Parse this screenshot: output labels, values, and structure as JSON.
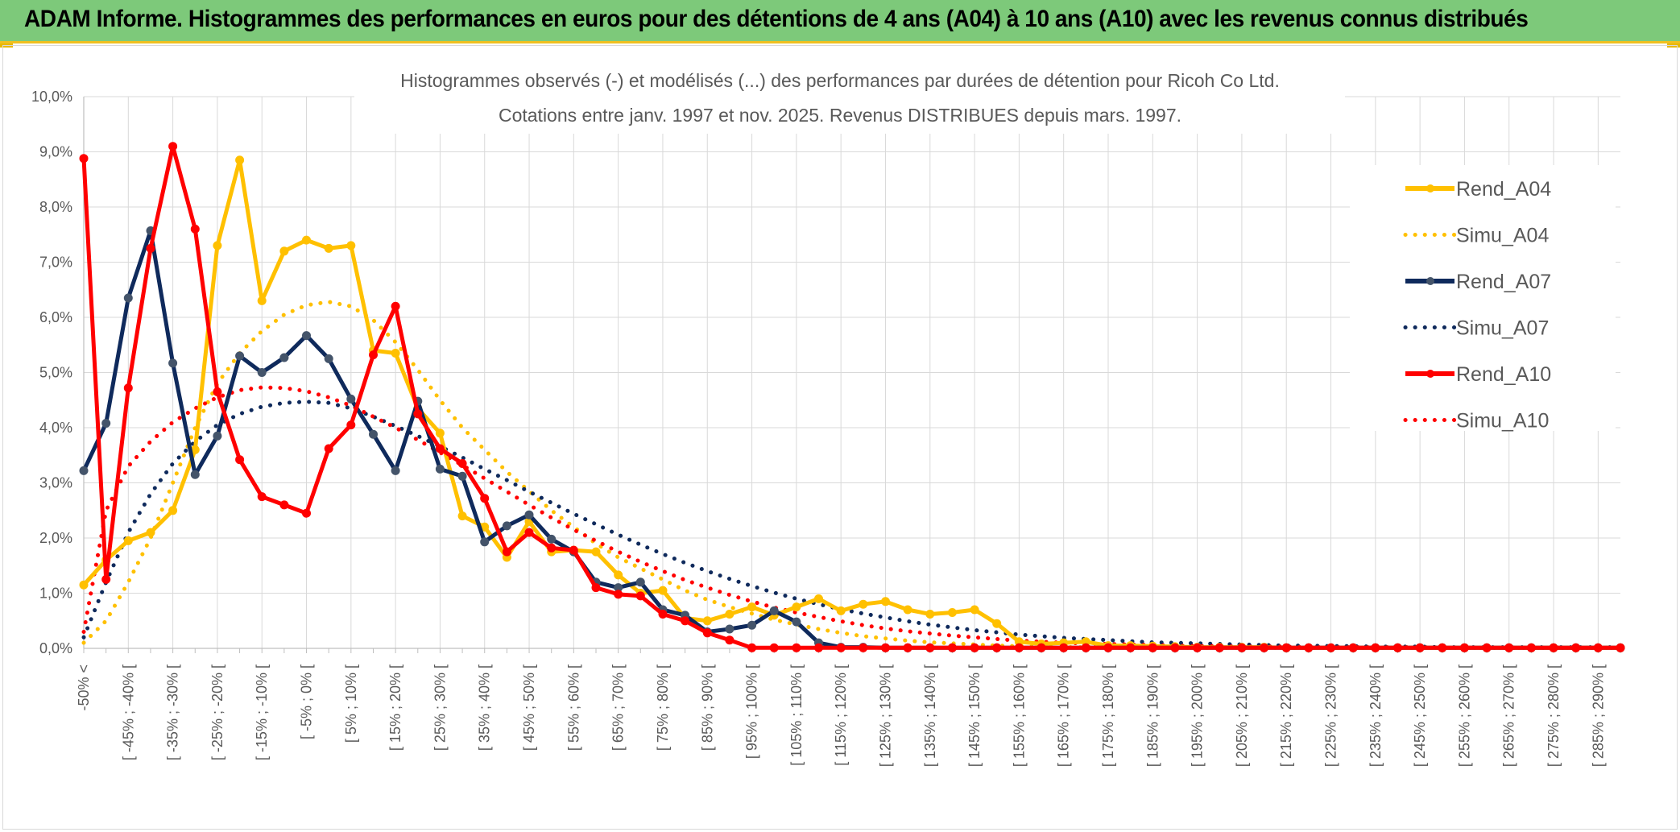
{
  "banner": {
    "title": "ADAM Informe. Histogrammes des performances en euros pour des détentions de 4 ans (A04) à 10 ans (A10) avec les revenus connus distribués"
  },
  "chart_data": {
    "type": "line",
    "title_line1": "Histogrammes observés (-) et modélisés (...) des performances par durées de détention pour Ricoh Co Ltd.",
    "title_line2": "Cotations entre janv. 1997 et nov. 2025. Revenus DISTRIBUES depuis mars. 1997.",
    "ylim": [
      0,
      10
    ],
    "y_ticks": [
      "0,0%",
      "1,0%",
      "2,0%",
      "3,0%",
      "4,0%",
      "5,0%",
      "6,0%",
      "7,0%",
      "8,0%",
      "9,0%",
      "10,0%"
    ],
    "x_count": 70,
    "x_tick_labels": [
      "-50% <",
      "[ -45% ; -40% [",
      "[ -35% ; -30% [",
      "[ -25% ; -20% [",
      "[ -15% ; -10% [",
      "[ -5% ; 0% [",
      "[ 5% ; 10% [",
      "[ 15% ; 20% [",
      "[ 25% ; 30% [",
      "[ 35% ; 40% [",
      "[ 45% ; 50% [",
      "[ 55% ; 60% [",
      "[ 65% ; 70% [",
      "[ 75% ; 80% [",
      "[ 85% ; 90% [",
      "[ 95% ; 100% [",
      "[ 105% ; 110% [",
      "[ 115% ; 120% [",
      "[ 125% ; 130% [",
      "[ 135% ; 140% [",
      "[ 145% ; 150% [",
      "[ 155% ; 160% [",
      "[ 165% ; 170% [",
      "[ 175% ; 180% [",
      "[ 185% ; 190% [",
      "[ 195% ; 200% [",
      "[ 205% ; 210% [",
      "[ 215% ; 220% [",
      "[ 225% ; 230% [",
      "[ 235% ; 240% [",
      "[ 245% ; 250% [",
      "[ 255% ; 260% [",
      "[ 265% ; 270% [",
      "[ 275% ; 280% [",
      "[ 285% ; 290% ["
    ],
    "legend_position": "right",
    "series": [
      {
        "name": "Rend_A04",
        "color": "#ffc000",
        "style": "solid",
        "markers": true,
        "values": [
          1.15,
          1.6,
          1.95,
          2.1,
          2.5,
          3.6,
          7.3,
          8.85,
          6.3,
          7.2,
          7.4,
          7.25,
          7.3,
          5.4,
          5.35,
          4.35,
          3.9,
          2.4,
          2.2,
          1.65,
          2.3,
          1.75,
          1.78,
          1.75,
          1.33,
          1.0,
          1.05,
          0.55,
          0.5,
          0.62,
          0.75,
          0.6,
          0.75,
          0.9,
          0.68,
          0.8,
          0.85,
          0.7,
          0.62,
          0.65,
          0.7,
          0.45,
          0.12,
          0.08,
          0.1,
          0.12,
          0.05,
          0.05,
          0.04,
          0.03,
          0.02,
          0.02,
          0.02,
          0.02,
          0.01,
          0.01,
          0.01,
          0.01,
          0.01,
          0.01,
          0.01,
          0.01,
          0.01,
          0.01,
          0.01,
          0.01,
          0.01,
          0.01,
          0.01,
          0.01
        ]
      },
      {
        "name": "Simu_A04",
        "color": "#ffc000",
        "style": "dotted",
        "markers": false,
        "values": [
          0.1,
          0.5,
          1.2,
          2.0,
          3.0,
          4.0,
          4.8,
          5.35,
          5.75,
          6.05,
          6.22,
          6.28,
          6.2,
          5.95,
          5.55,
          5.05,
          4.5,
          4.0,
          3.6,
          3.2,
          2.85,
          2.5,
          2.2,
          1.9,
          1.65,
          1.45,
          1.25,
          1.05,
          0.88,
          0.75,
          0.63,
          0.52,
          0.43,
          0.35,
          0.28,
          0.22,
          0.18,
          0.14,
          0.11,
          0.09,
          0.07,
          0.05,
          0.04,
          0.03,
          0.02,
          0.02,
          0.01,
          0.01,
          0.01,
          0.01,
          0.01,
          0.01,
          0.01,
          0.01,
          0.01,
          0.01,
          0.01,
          0.01,
          0.01,
          0.01,
          0.01,
          0.01,
          0.01,
          0.01,
          0.01,
          0.01,
          0.01,
          0.01,
          0.01,
          0.01
        ]
      },
      {
        "name": "Rend_A07",
        "color": "#0f2a5c",
        "style": "solid",
        "markers": true,
        "values": [
          3.22,
          4.08,
          6.35,
          7.57,
          5.17,
          3.15,
          3.85,
          5.3,
          5.0,
          5.27,
          5.67,
          5.25,
          4.52,
          3.88,
          3.22,
          4.48,
          3.25,
          3.12,
          1.93,
          2.22,
          2.42,
          1.98,
          1.75,
          1.2,
          1.1,
          1.2,
          0.7,
          0.6,
          0.3,
          0.35,
          0.42,
          0.68,
          0.48,
          0.1,
          0.02,
          0.02,
          0.01,
          0.01,
          0.01,
          0.01,
          0.01,
          0.01,
          0.01,
          0.01,
          0.01,
          0.01,
          0.01,
          0.01,
          0.01,
          0.01,
          0.01,
          0.01,
          0.01,
          0.01,
          0.01,
          0.01,
          0.01,
          0.01,
          0.01,
          0.01,
          0.01,
          0.01,
          0.01,
          0.01,
          0.01,
          0.01,
          0.01,
          0.01,
          0.01,
          0.01
        ]
      },
      {
        "name": "Simu_A07",
        "color": "#0f2a5c",
        "style": "dotted",
        "markers": false,
        "values": [
          0.2,
          1.2,
          2.1,
          2.8,
          3.35,
          3.75,
          4.05,
          4.25,
          4.38,
          4.45,
          4.47,
          4.45,
          4.35,
          4.2,
          4.03,
          3.85,
          3.66,
          3.46,
          3.25,
          3.05,
          2.84,
          2.64,
          2.44,
          2.25,
          2.06,
          1.88,
          1.71,
          1.55,
          1.4,
          1.26,
          1.13,
          1.01,
          0.9,
          0.8,
          0.71,
          0.63,
          0.56,
          0.49,
          0.43,
          0.38,
          0.33,
          0.29,
          0.25,
          0.22,
          0.19,
          0.17,
          0.15,
          0.13,
          0.11,
          0.1,
          0.09,
          0.08,
          0.07,
          0.06,
          0.05,
          0.05,
          0.04,
          0.04,
          0.03,
          0.03,
          0.03,
          0.02,
          0.02,
          0.02,
          0.02,
          0.02,
          0.02,
          0.02,
          0.02,
          0.02
        ]
      },
      {
        "name": "Rend_A10",
        "color": "#ff0000",
        "style": "solid",
        "markers": true,
        "values": [
          8.88,
          1.25,
          4.72,
          7.25,
          9.1,
          7.6,
          4.65,
          3.42,
          2.75,
          2.6,
          2.45,
          3.62,
          4.05,
          5.32,
          6.2,
          4.25,
          3.62,
          3.35,
          2.72,
          1.75,
          2.1,
          1.82,
          1.78,
          1.1,
          0.98,
          0.95,
          0.62,
          0.5,
          0.28,
          0.15,
          0.01,
          0.01,
          0.01,
          0.01,
          0.01,
          0.01,
          0.01,
          0.01,
          0.01,
          0.01,
          0.01,
          0.01,
          0.01,
          0.01,
          0.01,
          0.01,
          0.01,
          0.01,
          0.01,
          0.01,
          0.01,
          0.01,
          0.01,
          0.01,
          0.01,
          0.01,
          0.01,
          0.01,
          0.01,
          0.01,
          0.01,
          0.01,
          0.01,
          0.01,
          0.01,
          0.01,
          0.01,
          0.01,
          0.01,
          0.01
        ]
      },
      {
        "name": "Simu_A10",
        "color": "#ff0000",
        "style": "dotted",
        "markers": false,
        "values": [
          0.3,
          2.5,
          3.3,
          3.75,
          4.1,
          4.35,
          4.55,
          4.68,
          4.73,
          4.72,
          4.66,
          4.55,
          4.4,
          4.2,
          4.0,
          3.78,
          3.55,
          3.32,
          3.08,
          2.84,
          2.6,
          2.37,
          2.15,
          1.95,
          1.75,
          1.57,
          1.4,
          1.24,
          1.1,
          0.97,
          0.85,
          0.74,
          0.65,
          0.57,
          0.49,
          0.42,
          0.36,
          0.31,
          0.27,
          0.23,
          0.2,
          0.17,
          0.14,
          0.12,
          0.1,
          0.09,
          0.08,
          0.07,
          0.06,
          0.05,
          0.04,
          0.04,
          0.03,
          0.03,
          0.03,
          0.02,
          0.02,
          0.02,
          0.02,
          0.02,
          0.02,
          0.01,
          0.01,
          0.01,
          0.01,
          0.01,
          0.01,
          0.01,
          0.01,
          0.01
        ]
      }
    ]
  }
}
